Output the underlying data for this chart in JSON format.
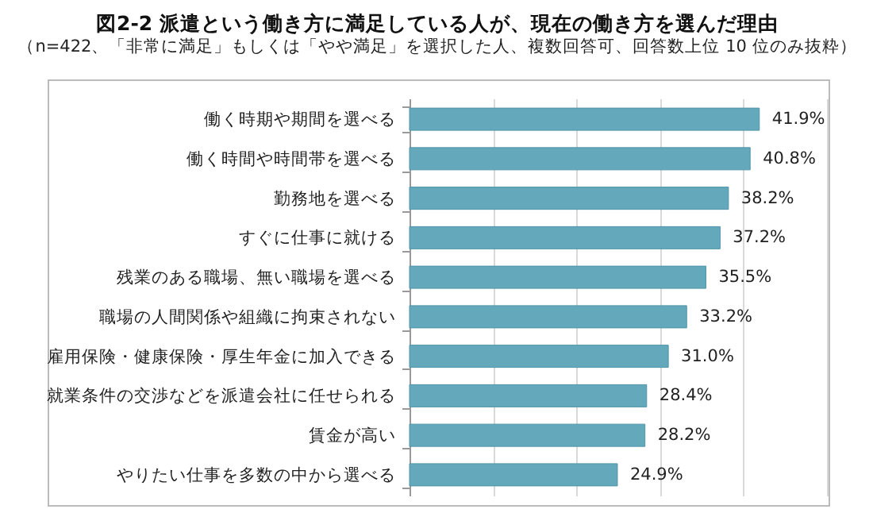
{
  "chart_data": {
    "type": "bar",
    "orientation": "horizontal",
    "title": "図2-2 派遣という働き方に満足している人が、現在の働き方を選んだ理由",
    "subtitle": "（n=422、「非常に満足」もしくは「やや満足」を選択した人、複数回答可、回答数上位 10 位のみ抜粋）",
    "categories": [
      "働く時期や期間を選べる",
      "働く時間や時間帯を選べる",
      "勤務地を選べる",
      "すぐに仕事に就ける",
      "残業のある職場、無い職場を選べる",
      "職場の人間関係や組織に拘束されない",
      "雇用保険・健康保険・厚生年金に加入できる",
      "就業条件の交渉などを派遣会社に任せられる",
      "賃金が高い",
      "やりたい仕事を多数の中から選べる"
    ],
    "values": [
      41.9,
      40.8,
      38.2,
      37.2,
      35.5,
      33.2,
      31.0,
      28.4,
      28.2,
      24.9
    ],
    "value_labels": [
      "41.9%",
      "40.8%",
      "38.2%",
      "37.2%",
      "35.5%",
      "33.2%",
      "31.0%",
      "28.4%",
      "28.2%",
      "24.9%"
    ],
    "color": "#64a8bb",
    "xlim": [
      0,
      50
    ],
    "xticks": [
      {
        "value": 0,
        "label": null
      },
      {
        "value": 10,
        "label": null
      },
      {
        "value": 20,
        "label": null
      },
      {
        "value": 30,
        "label": null
      },
      {
        "value": 40,
        "label": null
      },
      {
        "value": 50,
        "label": null
      }
    ],
    "grid": "x",
    "tick_labels": "y"
  }
}
